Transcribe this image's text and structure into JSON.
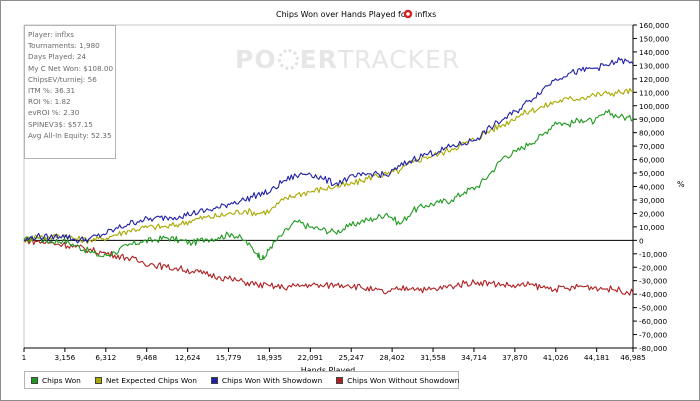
{
  "chart_data": {
    "type": "line",
    "title": "Chips Won over Hands Played for",
    "title_player": "inflxs",
    "player_icon": "red-poker-chip-icon",
    "watermark": "POKERTRACKER",
    "xlabel": "Hands Played",
    "ylabel": "%",
    "xlim": [
      1,
      46985
    ],
    "ylim": [
      -80000,
      160000
    ],
    "x_ticks": [
      "1",
      "3,156",
      "6,312",
      "9,468",
      "12,624",
      "15,779",
      "18,935",
      "22,091",
      "25,247",
      "28,402",
      "31,558",
      "34,714",
      "37,870",
      "41,026",
      "44,181",
      "46,985"
    ],
    "x_tick_values": [
      1,
      3156,
      6312,
      9468,
      12624,
      15779,
      18935,
      22091,
      25247,
      28402,
      31558,
      34714,
      37870,
      41026,
      44181,
      46985
    ],
    "y_ticks": [
      "160,000",
      "150,000",
      "140,000",
      "130,000",
      "120,000",
      "110,000",
      "100,000",
      "90,000",
      "80,000",
      "70,000",
      "60,000",
      "50,000",
      "40,000",
      "30,000",
      "20,000",
      "10,000",
      "0",
      "-10,000",
      "-20,000",
      "-30,000",
      "-40,000",
      "-50,000",
      "-60,000",
      "-70,000",
      "-80,000"
    ],
    "y_tick_values": [
      160000,
      150000,
      140000,
      130000,
      120000,
      110000,
      100000,
      90000,
      80000,
      70000,
      60000,
      50000,
      40000,
      30000,
      20000,
      10000,
      0,
      -10000,
      -20000,
      -30000,
      -40000,
      -50000,
      -60000,
      -70000,
      -80000
    ],
    "grid": false,
    "legend_position": "bottom-left",
    "series": [
      {
        "name": "Chips Won",
        "color": "#1f9a1f",
        "x": [
          1,
          1000,
          2000,
          3000,
          4000,
          5000,
          6000,
          7000,
          8000,
          9000,
          10000,
          11000,
          12000,
          13000,
          14000,
          15000,
          16000,
          17000,
          18000,
          18500,
          19000,
          20000,
          21000,
          22000,
          23000,
          24000,
          25000,
          26000,
          27000,
          28000,
          29000,
          30000,
          31000,
          32000,
          33000,
          34000,
          35000,
          36000,
          37000,
          38000,
          39000,
          40000,
          41000,
          42000,
          43000,
          44000,
          45000,
          46000,
          46985
        ],
        "y": [
          0,
          2000,
          -1000,
          0,
          -4000,
          -8000,
          -12000,
          -9000,
          -4000,
          -1000,
          0,
          2000,
          0,
          -2000,
          1000,
          2000,
          5000,
          0,
          -10000,
          -14000,
          -5000,
          5000,
          14000,
          10000,
          8000,
          6000,
          10000,
          14000,
          16000,
          20000,
          12000,
          22000,
          26000,
          28000,
          30000,
          36000,
          40000,
          50000,
          62000,
          66000,
          72000,
          78000,
          88000,
          86000,
          90000,
          88000,
          95000,
          92000,
          90000
        ]
      },
      {
        "name": "Net Expected Chips Won",
        "color": "#a8a800",
        "x": [
          1,
          1000,
          2000,
          3000,
          4000,
          5000,
          6000,
          7000,
          8000,
          9000,
          10000,
          11000,
          12000,
          13000,
          14000,
          15000,
          16000,
          17000,
          18000,
          19000,
          20000,
          21000,
          22000,
          23000,
          24000,
          25000,
          26000,
          27000,
          28000,
          29000,
          30000,
          31000,
          32000,
          33000,
          34000,
          35000,
          36000,
          37000,
          38000,
          39000,
          40000,
          41000,
          42000,
          43000,
          44000,
          45000,
          46000,
          46985
        ],
        "y": [
          0,
          3000,
          2000,
          4000,
          1000,
          0,
          1000,
          4000,
          7000,
          9000,
          10000,
          10000,
          12000,
          15000,
          17000,
          18000,
          20000,
          22000,
          20000,
          22000,
          30000,
          34000,
          36000,
          38000,
          40000,
          41000,
          44000,
          48000,
          49000,
          52000,
          58000,
          62000,
          64000,
          68000,
          72000,
          76000,
          82000,
          86000,
          92000,
          96000,
          99000,
          103000,
          105000,
          106000,
          108000,
          109000,
          110000,
          111000
        ]
      },
      {
        "name": "Chips Won With Showdown",
        "color": "#2020a8",
        "x": [
          1,
          1000,
          2000,
          3000,
          4000,
          5000,
          6000,
          7000,
          8000,
          9000,
          10000,
          11000,
          12000,
          13000,
          14000,
          15000,
          16000,
          17000,
          18000,
          19000,
          20000,
          21000,
          22000,
          23000,
          24000,
          25000,
          26000,
          27000,
          28000,
          29000,
          30000,
          31000,
          32000,
          33000,
          34000,
          35000,
          36000,
          37000,
          38000,
          39000,
          40000,
          41000,
          42000,
          43000,
          44000,
          45000,
          46000,
          46985
        ],
        "y": [
          0,
          3000,
          2000,
          4000,
          0,
          1000,
          4000,
          8000,
          12000,
          15000,
          16000,
          17000,
          18000,
          20000,
          22000,
          24000,
          28000,
          30000,
          34000,
          36000,
          44000,
          48000,
          50000,
          46000,
          42000,
          46000,
          48000,
          50000,
          48000,
          55000,
          60000,
          64000,
          66000,
          70000,
          72000,
          76000,
          84000,
          90000,
          96000,
          104000,
          112000,
          120000,
          124000,
          126000,
          128000,
          130000,
          134000,
          131000
        ]
      },
      {
        "name": "Chips Won Without Showdown",
        "color": "#b02020",
        "x": [
          1,
          1000,
          2000,
          3000,
          4000,
          5000,
          6000,
          7000,
          8000,
          9000,
          10000,
          11000,
          12000,
          13000,
          14000,
          15000,
          16000,
          17000,
          18000,
          19000,
          20000,
          21000,
          22000,
          23000,
          24000,
          25000,
          26000,
          27000,
          28000,
          29000,
          30000,
          31000,
          32000,
          33000,
          34000,
          35000,
          36000,
          37000,
          38000,
          39000,
          40000,
          41000,
          42000,
          43000,
          44000,
          45000,
          46000,
          46985
        ],
        "y": [
          0,
          -1000,
          -2000,
          -3000,
          -5000,
          -7000,
          -9000,
          -11000,
          -13000,
          -16000,
          -18000,
          -20000,
          -21000,
          -23000,
          -25000,
          -27000,
          -29000,
          -31000,
          -33000,
          -34000,
          -35000,
          -34000,
          -33000,
          -34000,
          -33000,
          -33000,
          -35000,
          -37000,
          -39000,
          -36000,
          -35000,
          -37000,
          -36000,
          -34000,
          -32000,
          -31000,
          -32000,
          -33000,
          -34000,
          -33000,
          -35000,
          -36000,
          -36000,
          -34000,
          -35000,
          -36000,
          -37000,
          -39000
        ]
      }
    ]
  },
  "stats": [
    "Player: inflxs",
    "Tournaments: 1,980",
    "Days Played: 24",
    "My C Net Won: $108.00",
    "ChipsEV/turniej: 56",
    "ITM %: 36.31",
    "ROI %: 1.82",
    "evROI %: 2.30",
    "SPINEV3$: $57.15",
    "Avg All-In Equity: 52.35"
  ]
}
